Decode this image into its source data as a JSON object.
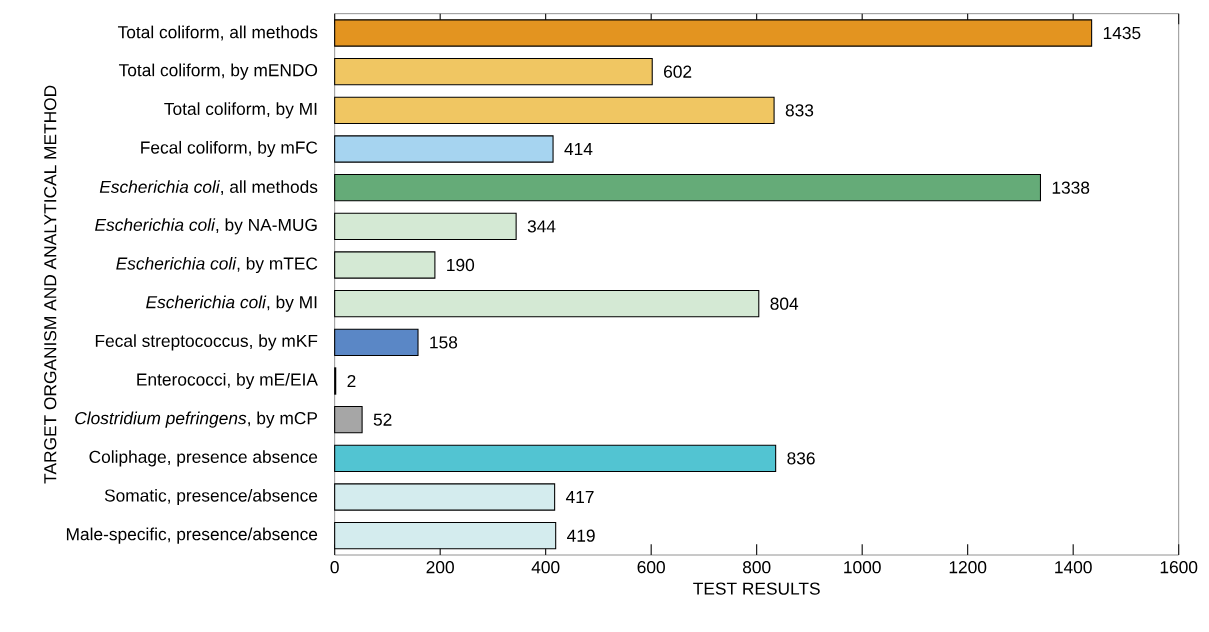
{
  "chart_data": {
    "type": "bar",
    "orientation": "horizontal",
    "xlabel": "TEST RESULTS",
    "ylabel": "TARGET ORGANISM AND ANALYTICAL METHOD",
    "categories": [
      "Total coliform, all methods",
      "Total coliform, by mENDO",
      "Total coliform, by MI",
      "Fecal coliform, by mFC",
      "*Escherichia coli*, all methods",
      "*Escherichia coli*, by NA-MUG",
      "*Escherichia coli*, by mTEC",
      "*Escherichia coli*, by MI",
      "Fecal streptococcus, by mKF",
      "Enterococci, by mE/EIA",
      "*Clostridium pefringens*, by mCP",
      "Coliphage, presence absence",
      "Somatic, presence/absence",
      "Male-specific, presence/absence"
    ],
    "values": [
      1435,
      602,
      833,
      414,
      1338,
      344,
      190,
      804,
      158,
      2,
      52,
      836,
      417,
      419
    ],
    "colors": [
      "#e39420",
      "#f0c662",
      "#f0c662",
      "#a6d4f0",
      "#65ab78",
      "#d4e9d4",
      "#d4e9d4",
      "#d4e9d4",
      "#5a87c6",
      "#ffffff",
      "#a6a6a6",
      "#52c4d2",
      "#d4ecee",
      "#d4ecee"
    ],
    "data_labels": true,
    "xlim": [
      0,
      1600
    ],
    "xticks": [
      0,
      200,
      400,
      600,
      800,
      1000,
      1200,
      1400,
      1600
    ],
    "grid": false
  }
}
